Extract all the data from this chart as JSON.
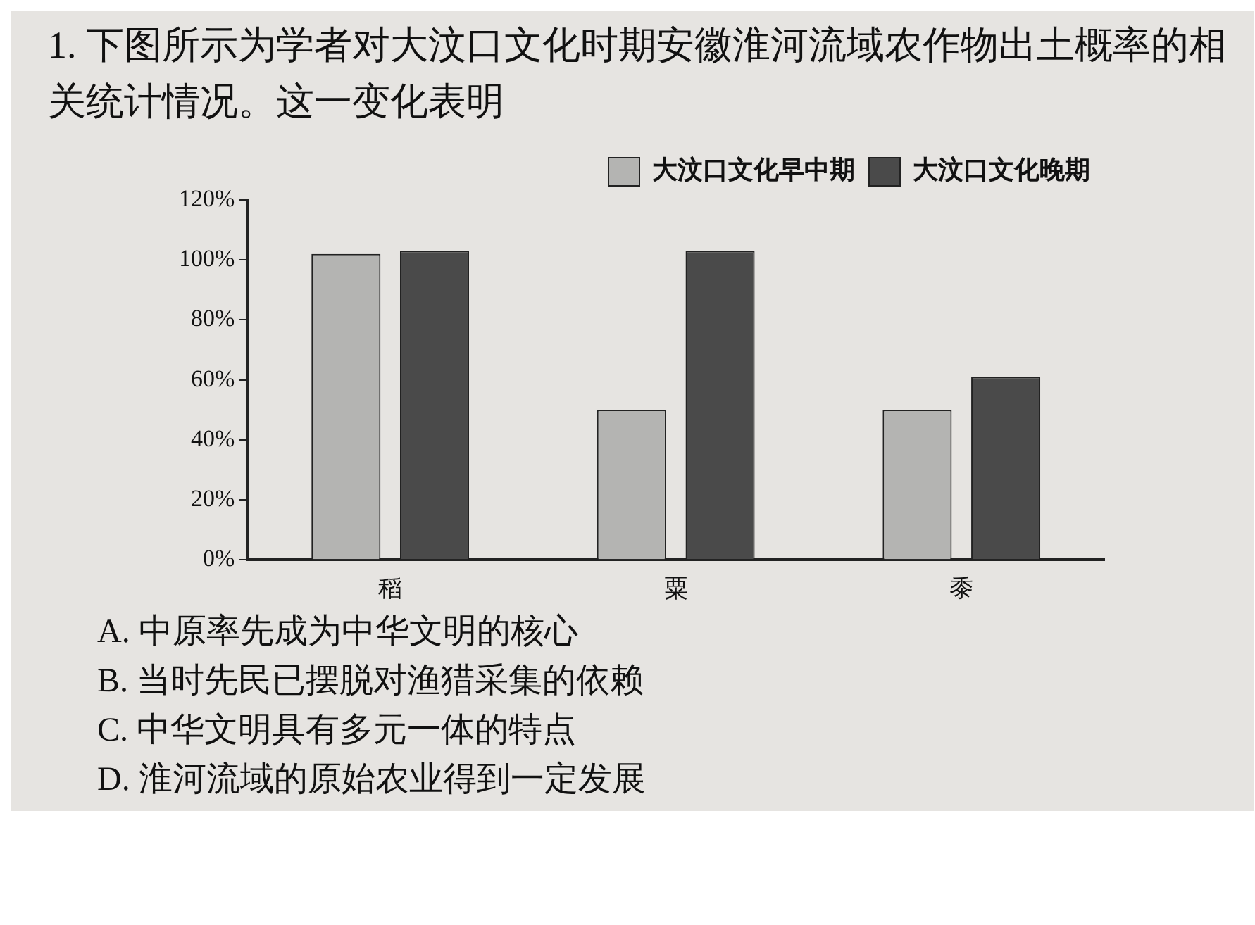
{
  "chart_data": {
    "type": "bar",
    "title": "1. 下图所示为学者对大汶口文化时期安徽淮河流域农作物出土概率的相关统计情况。这一变化表明",
    "categories": [
      "稻",
      "粟",
      "黍"
    ],
    "series": [
      {
        "name": "大汶口文化早中期",
        "color": "#b4b4b2",
        "values": [
          102,
          50,
          50
        ]
      },
      {
        "name": "大汶口文化晚期",
        "color": "#4a4a4a",
        "values": [
          103,
          103,
          61
        ]
      }
    ],
    "ylim": [
      0,
      120
    ],
    "yticks": [
      {
        "value": 0,
        "label": "0%"
      },
      {
        "value": 20,
        "label": "20%"
      },
      {
        "value": 40,
        "label": "40%"
      },
      {
        "value": 60,
        "label": "60%"
      },
      {
        "value": 80,
        "label": "80%"
      },
      {
        "value": 100,
        "label": "100%"
      },
      {
        "value": 120,
        "label": "120%"
      }
    ],
    "grid": false,
    "legend": "top right",
    "annotations": [
      "A. 中原率先成为中华文明的核心",
      "B. 当时先民已摆脱对渔猎采集的依赖",
      "C. 中华文明具有多元一体的特点",
      "D. 淮河流域的原始农业得到一定发展"
    ]
  }
}
